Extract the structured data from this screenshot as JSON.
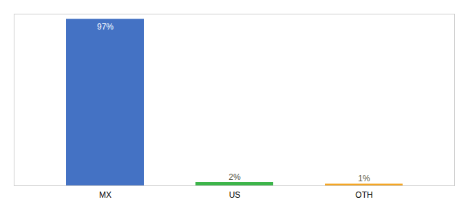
{
  "chart_data": {
    "type": "bar",
    "categories": [
      "MX",
      "US",
      "OTH"
    ],
    "values": [
      97,
      2,
      1
    ],
    "value_labels": [
      "97%",
      "2%",
      "1%"
    ],
    "colors": [
      "#4472c4",
      "#3cb54a",
      "#f5a623"
    ],
    "ylim": [
      0,
      100
    ],
    "data_labels": true,
    "tick_labels": "x",
    "grid": false
  }
}
